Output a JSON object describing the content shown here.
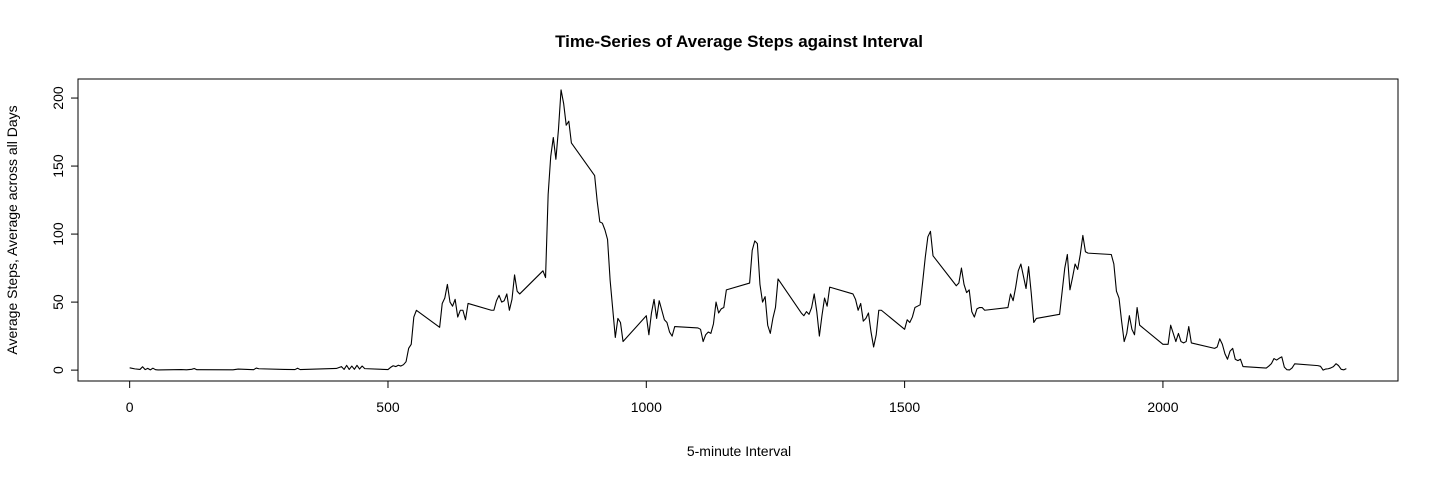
{
  "chart_data": {
    "type": "line",
    "title": "Time-Series of Average Steps against Interval",
    "xlabel": "5-minute Interval",
    "ylabel": "Average Steps, Average across all Days",
    "xlim": [
      -100,
      2455
    ],
    "ylim": [
      -8,
      214
    ],
    "xticks": [
      0,
      500,
      1000,
      1500,
      2000
    ],
    "yticks": [
      0,
      50,
      100,
      150,
      200
    ],
    "grid": false,
    "series": [
      {
        "color": "#000000",
        "points": [
          [
            0,
            1.7
          ],
          [
            10,
            0.9
          ],
          [
            20,
            0.5
          ],
          [
            25,
            2.5
          ],
          [
            30,
            0.4
          ],
          [
            35,
            1.3
          ],
          [
            40,
            0.2
          ],
          [
            45,
            1.4
          ],
          [
            50,
            0.3
          ],
          [
            55,
            0.1
          ],
          [
            100,
            0.4
          ],
          [
            110,
            0.2
          ],
          [
            120,
            0.6
          ],
          [
            125,
            1.2
          ],
          [
            130,
            0.3
          ],
          [
            200,
            0.2
          ],
          [
            210,
            0.8
          ],
          [
            240,
            0.3
          ],
          [
            245,
            1.5
          ],
          [
            250,
            1.0
          ],
          [
            300,
            0.5
          ],
          [
            320,
            0.4
          ],
          [
            325,
            1.4
          ],
          [
            330,
            0.4
          ],
          [
            400,
            1.2
          ],
          [
            410,
            2.6
          ],
          [
            415,
            0.5
          ],
          [
            420,
            3.5
          ],
          [
            425,
            0.5
          ],
          [
            430,
            3.0
          ],
          [
            435,
            0.6
          ],
          [
            440,
            3.5
          ],
          [
            445,
            0.8
          ],
          [
            450,
            3.0
          ],
          [
            455,
            1.1
          ],
          [
            500,
            0.4
          ],
          [
            505,
            2.0
          ],
          [
            510,
            3.2
          ],
          [
            515,
            2.6
          ],
          [
            520,
            3.6
          ],
          [
            525,
            3.0
          ],
          [
            530,
            4.0
          ],
          [
            535,
            6.2
          ],
          [
            540,
            16.0
          ],
          [
            545,
            19.0
          ],
          [
            550,
            39.0
          ],
          [
            555,
            44.0
          ],
          [
            600,
            31.5
          ],
          [
            605,
            49.0
          ],
          [
            610,
            53.0
          ],
          [
            615,
            63.0
          ],
          [
            620,
            50.0
          ],
          [
            625,
            47.0
          ],
          [
            630,
            52.0
          ],
          [
            635,
            39.0
          ],
          [
            640,
            44.0
          ],
          [
            645,
            44.0
          ],
          [
            650,
            37.0
          ],
          [
            655,
            49.0
          ],
          [
            700,
            44.0
          ],
          [
            705,
            44.0
          ],
          [
            710,
            51.0
          ],
          [
            715,
            55.0
          ],
          [
            720,
            50.0
          ],
          [
            725,
            51.0
          ],
          [
            730,
            56.0
          ],
          [
            735,
            44.0
          ],
          [
            740,
            52.0
          ],
          [
            745,
            70.0
          ],
          [
            750,
            58.0
          ],
          [
            755,
            56.0
          ],
          [
            800,
            73.0
          ],
          [
            805,
            68.0
          ],
          [
            810,
            129.0
          ],
          [
            815,
            157.0
          ],
          [
            820,
            171.0
          ],
          [
            825,
            155.0
          ],
          [
            830,
            177.0
          ],
          [
            835,
            206.0
          ],
          [
            840,
            196.0
          ],
          [
            845,
            180.0
          ],
          [
            850,
            183.0
          ],
          [
            855,
            167.0
          ],
          [
            900,
            143.0
          ],
          [
            905,
            124.0
          ],
          [
            910,
            109.0
          ],
          [
            915,
            108.0
          ],
          [
            920,
            103.0
          ],
          [
            925,
            96.0
          ],
          [
            930,
            66.0
          ],
          [
            935,
            45.0
          ],
          [
            940,
            24.0
          ],
          [
            945,
            38.0
          ],
          [
            950,
            35.0
          ],
          [
            955,
            21.0
          ],
          [
            1000,
            40.0
          ],
          [
            1005,
            26.0
          ],
          [
            1010,
            42.0
          ],
          [
            1015,
            52.0
          ],
          [
            1020,
            38.0
          ],
          [
            1025,
            51.0
          ],
          [
            1030,
            44.0
          ],
          [
            1035,
            37.0
          ],
          [
            1040,
            35.0
          ],
          [
            1045,
            28.0
          ],
          [
            1050,
            25.0
          ],
          [
            1055,
            32.0
          ],
          [
            1100,
            31.0
          ],
          [
            1105,
            30.0
          ],
          [
            1110,
            21.0
          ],
          [
            1115,
            26.0
          ],
          [
            1120,
            28.0
          ],
          [
            1125,
            27.0
          ],
          [
            1130,
            34.0
          ],
          [
            1135,
            50.0
          ],
          [
            1140,
            42.0
          ],
          [
            1145,
            45.0
          ],
          [
            1150,
            46.0
          ],
          [
            1155,
            59.0
          ],
          [
            1200,
            64.0
          ],
          [
            1205,
            88.0
          ],
          [
            1210,
            95.0
          ],
          [
            1215,
            93.0
          ],
          [
            1220,
            63.0
          ],
          [
            1225,
            50.0
          ],
          [
            1230,
            54.0
          ],
          [
            1235,
            33.0
          ],
          [
            1240,
            27.0
          ],
          [
            1245,
            38.0
          ],
          [
            1250,
            46.0
          ],
          [
            1255,
            67.0
          ],
          [
            1300,
            42.0
          ],
          [
            1305,
            40.0
          ],
          [
            1310,
            43.0
          ],
          [
            1315,
            41.0
          ],
          [
            1320,
            46.0
          ],
          [
            1325,
            56.0
          ],
          [
            1330,
            43.0
          ],
          [
            1335,
            25.0
          ],
          [
            1340,
            40.0
          ],
          [
            1345,
            53.0
          ],
          [
            1350,
            47.0
          ],
          [
            1355,
            61.0
          ],
          [
            1400,
            56.0
          ],
          [
            1405,
            52.0
          ],
          [
            1410,
            44.0
          ],
          [
            1415,
            49.0
          ],
          [
            1420,
            36.0
          ],
          [
            1425,
            38.0
          ],
          [
            1430,
            42.0
          ],
          [
            1435,
            28.0
          ],
          [
            1440,
            17.0
          ],
          [
            1445,
            26.0
          ],
          [
            1450,
            44.0
          ],
          [
            1455,
            44.0
          ],
          [
            1500,
            30.0
          ],
          [
            1505,
            37.0
          ],
          [
            1510,
            35.0
          ],
          [
            1515,
            39.0
          ],
          [
            1520,
            46.0
          ],
          [
            1525,
            47.0
          ],
          [
            1530,
            48.0
          ],
          [
            1535,
            65.0
          ],
          [
            1540,
            83.0
          ],
          [
            1545,
            98.0
          ],
          [
            1550,
            102.0
          ],
          [
            1555,
            84.0
          ],
          [
            1600,
            62.0
          ],
          [
            1605,
            64.0
          ],
          [
            1610,
            75.0
          ],
          [
            1615,
            63.0
          ],
          [
            1620,
            57.0
          ],
          [
            1625,
            59.0
          ],
          [
            1630,
            43.0
          ],
          [
            1635,
            39.0
          ],
          [
            1640,
            45.0
          ],
          [
            1645,
            46.0
          ],
          [
            1650,
            46.0
          ],
          [
            1655,
            44.0
          ],
          [
            1700,
            46.0
          ],
          [
            1705,
            56.0
          ],
          [
            1710,
            51.0
          ],
          [
            1715,
            61.0
          ],
          [
            1720,
            73.0
          ],
          [
            1725,
            78.0
          ],
          [
            1730,
            69.0
          ],
          [
            1735,
            60.0
          ],
          [
            1740,
            76.0
          ],
          [
            1745,
            57.0
          ],
          [
            1750,
            35.0
          ],
          [
            1755,
            38.0
          ],
          [
            1800,
            41.0
          ],
          [
            1805,
            58.0
          ],
          [
            1810,
            75.0
          ],
          [
            1815,
            85.0
          ],
          [
            1820,
            59.0
          ],
          [
            1825,
            68.0
          ],
          [
            1830,
            78.0
          ],
          [
            1835,
            74.0
          ],
          [
            1840,
            85.0
          ],
          [
            1845,
            99.0
          ],
          [
            1850,
            87.0
          ],
          [
            1855,
            86.0
          ],
          [
            1900,
            85.0
          ],
          [
            1905,
            78.0
          ],
          [
            1910,
            58.0
          ],
          [
            1915,
            53.0
          ],
          [
            1920,
            36.0
          ],
          [
            1925,
            21.0
          ],
          [
            1930,
            27.0
          ],
          [
            1935,
            40.0
          ],
          [
            1940,
            30.0
          ],
          [
            1945,
            26.0
          ],
          [
            1950,
            46.0
          ],
          [
            1955,
            33.0
          ],
          [
            2000,
            19.0
          ],
          [
            2005,
            19.0
          ],
          [
            2010,
            19.0
          ],
          [
            2015,
            33.0
          ],
          [
            2020,
            27.0
          ],
          [
            2025,
            21.0
          ],
          [
            2030,
            27.0
          ],
          [
            2035,
            21.0
          ],
          [
            2040,
            20.0
          ],
          [
            2045,
            21.0
          ],
          [
            2050,
            32.0
          ],
          [
            2055,
            20.0
          ],
          [
            2100,
            16.0
          ],
          [
            2105,
            17.0
          ],
          [
            2110,
            23.0
          ],
          [
            2115,
            19.0
          ],
          [
            2120,
            12.0
          ],
          [
            2125,
            8.0
          ],
          [
            2130,
            14.0
          ],
          [
            2135,
            16.0
          ],
          [
            2140,
            8.0
          ],
          [
            2145,
            7.0
          ],
          [
            2150,
            8.0
          ],
          [
            2155,
            2.6
          ],
          [
            2200,
            1.5
          ],
          [
            2205,
            3.0
          ],
          [
            2210,
            4.8
          ],
          [
            2215,
            8.5
          ],
          [
            2220,
            7.4
          ],
          [
            2225,
            8.7
          ],
          [
            2230,
            9.8
          ],
          [
            2235,
            2.2
          ],
          [
            2240,
            0.3
          ],
          [
            2245,
            0.1
          ],
          [
            2250,
            1.6
          ],
          [
            2255,
            4.6
          ],
          [
            2300,
            3.3
          ],
          [
            2305,
            2.8
          ],
          [
            2310,
            0.0
          ],
          [
            2315,
            0.8
          ],
          [
            2320,
            1.0
          ],
          [
            2325,
            1.6
          ],
          [
            2330,
            2.6
          ],
          [
            2335,
            4.7
          ],
          [
            2340,
            3.3
          ],
          [
            2345,
            0.6
          ],
          [
            2350,
            0.2
          ],
          [
            2355,
            1.1
          ]
        ]
      }
    ]
  }
}
